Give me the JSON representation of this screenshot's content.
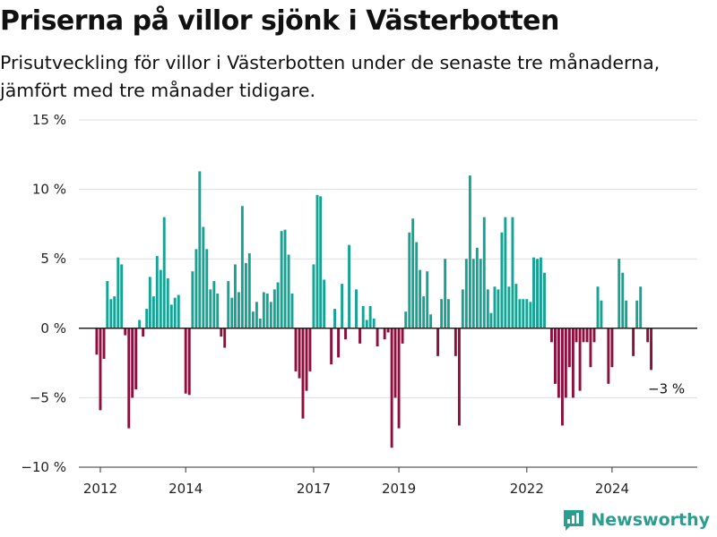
{
  "title": "Priserna på villor sjönk i Västerbotten",
  "subtitle": "Prisutveckling för villor i Västerbotten under de senaste tre månaderna, jämfört med tre månader tidigare.",
  "brand": "Newsworthy",
  "colors": {
    "positive": "#16a394",
    "negative": "#8c0f3c",
    "grid": "#dddddd",
    "zero": "#222222",
    "brand": "#2a9d8f"
  },
  "chart_data": {
    "type": "bar",
    "ylim": [
      -10,
      15
    ],
    "y_ticks": [
      15,
      10,
      5,
      0,
      -5,
      -10
    ],
    "y_tick_labels": [
      "15 %",
      "10 %",
      "5 %",
      "0 %",
      "−5 %",
      "−10 %"
    ],
    "x_range": [
      "2011-07-01",
      "2025-12-31"
    ],
    "x_ticks": [
      {
        "date": "2012-01-01",
        "label": "2012"
      },
      {
        "date": "2014-01-01",
        "label": "2014"
      },
      {
        "date": "2017-01-01",
        "label": "2017"
      },
      {
        "date": "2019-01-01",
        "label": "2019"
      },
      {
        "date": "2022-01-01",
        "label": "2022"
      },
      {
        "date": "2024-01-01",
        "label": "2024"
      }
    ],
    "end_label": "−3 %",
    "series": [
      {
        "start": "2011-12",
        "values": [
          -1.9,
          -5.9,
          -2.2,
          3.4,
          2.1,
          2.3,
          5.1,
          4.6,
          -0.5,
          -7.2,
          -5,
          -4.4,
          0.6,
          -0.6,
          1.4,
          3.7,
          2.3,
          5.2,
          4.2,
          8,
          3.6,
          1.7,
          2.2,
          2.4,
          0,
          -4.7,
          -4.8,
          4.1,
          5.7,
          11.3,
          7.3,
          5.7,
          2.8,
          3.4,
          2.5,
          -0.6,
          -1.4,
          3.4,
          2.2,
          4.6,
          2.6,
          8.8,
          4.7,
          5.4,
          1.2,
          1.9,
          0.7,
          2.6,
          2.5,
          1.9,
          2.8,
          3.3,
          7,
          7.1,
          5.3,
          2.5,
          -3.1,
          -3.6,
          -6.5,
          -4.5,
          -3.1,
          4.6,
          9.6,
          9.5,
          3.5,
          0,
          -2.6,
          1.4,
          -2.1,
          3.2,
          -0.8,
          6,
          0,
          2.8,
          -1.1,
          1.6,
          0.6,
          1.6,
          0.7,
          -1.3,
          0,
          -0.8,
          -0.3,
          -8.6,
          -5,
          -7.2,
          -1.1,
          1.2,
          6.9,
          7.9,
          6.2,
          4.2,
          2.3,
          4.1,
          1,
          0,
          -2,
          2.1,
          5,
          2.1,
          0,
          -2,
          -7,
          2.8,
          5,
          11,
          5,
          5.8,
          5,
          8,
          2.8,
          1.1,
          3,
          2.8,
          6.9,
          8,
          3,
          8,
          3.2,
          2.1,
          2.1,
          2.1,
          1.9,
          5.1,
          5,
          5.1,
          4,
          0,
          -1,
          -4,
          -5,
          -7,
          -5,
          -2.8,
          -5,
          -1,
          -4.5,
          -1,
          -1,
          -2.8,
          -1,
          3,
          2,
          0,
          -4,
          -2.8,
          0,
          5,
          4,
          2,
          0,
          -2,
          2,
          3,
          0,
          -1,
          -3
        ]
      }
    ]
  }
}
